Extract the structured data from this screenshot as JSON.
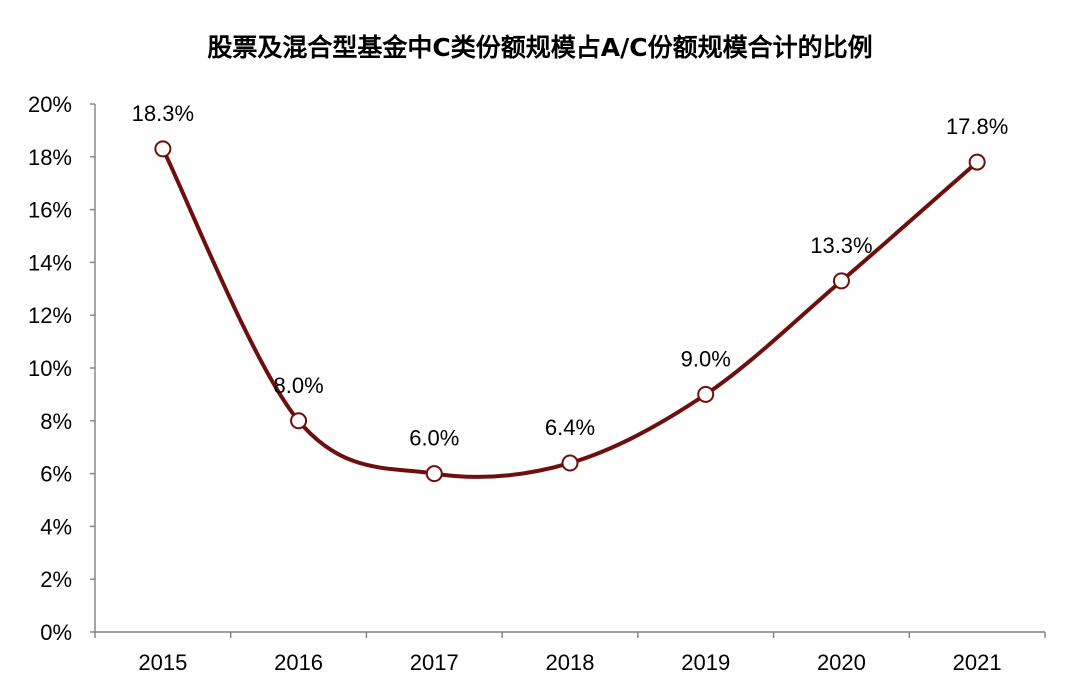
{
  "chart_data": {
    "type": "line",
    "title": "股票及混合型基金中C类份额规模占A/C份额规模合计的比例",
    "x": [
      "2015",
      "2016",
      "2017",
      "2018",
      "2019",
      "2020",
      "2021"
    ],
    "series": [
      {
        "values": [
          18.3,
          8.0,
          6.0,
          6.4,
          9.0,
          13.3,
          17.8
        ],
        "labels": [
          "18.3%",
          "8.0%",
          "6.0%",
          "6.4%",
          "9.0%",
          "13.3%",
          "17.8%"
        ]
      }
    ],
    "y_ticks": [
      "0%",
      "2%",
      "4%",
      "6%",
      "8%",
      "10%",
      "12%",
      "14%",
      "16%",
      "18%",
      "20%"
    ],
    "ylim": [
      0,
      20
    ],
    "xlabel": "",
    "ylabel": "",
    "smooth": true,
    "grid": false,
    "legend": "none",
    "colors": {
      "line": "#6e0f0f",
      "marker_fill": "#ffffff",
      "marker_stroke": "#6e0f0f",
      "axis": "#7f7f7f"
    }
  }
}
